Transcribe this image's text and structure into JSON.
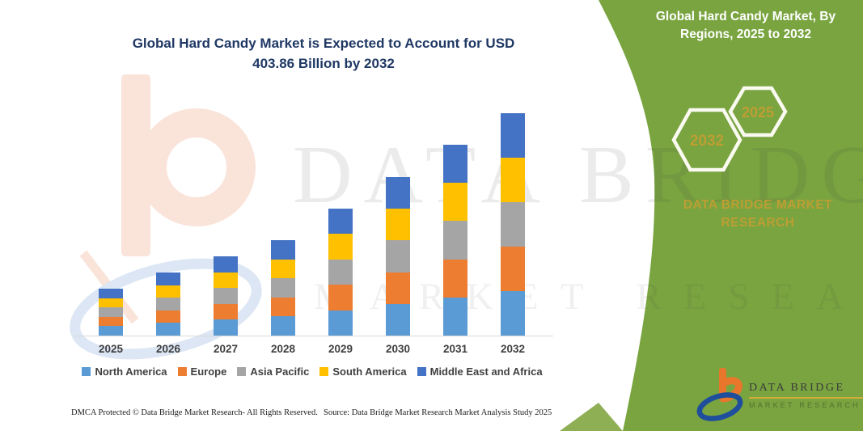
{
  "chart": {
    "title": "Global Hard Candy Market is Expected to Account for USD 403.86 Billion by 2032"
  },
  "chart_data": {
    "type": "bar",
    "stacked": true,
    "unit": "USD Billion",
    "title": "Global Hard Candy Market is Expected to Account for USD 403.86 Billion by 2032",
    "categories": [
      "2025",
      "2026",
      "2027",
      "2028",
      "2029",
      "2030",
      "2031",
      "2032"
    ],
    "series": [
      {
        "name": "North America",
        "color": "#5B9BD5",
        "values": [
          17.0,
          22.9,
          28.8,
          34.7,
          46.1,
          57.6,
          69.3,
          80.8
        ]
      },
      {
        "name": "Europe",
        "color": "#ED7D31",
        "values": [
          17.0,
          22.9,
          28.8,
          34.7,
          46.1,
          57.6,
          69.3,
          80.8
        ]
      },
      {
        "name": "Asia Pacific",
        "color": "#A5A5A5",
        "values": [
          17.0,
          22.9,
          28.8,
          34.7,
          46.1,
          57.6,
          69.3,
          80.8
        ]
      },
      {
        "name": "South America",
        "color": "#FFC000",
        "values": [
          17.0,
          22.9,
          28.8,
          34.7,
          46.1,
          57.6,
          69.3,
          80.8
        ]
      },
      {
        "name": "Middle East and Africa",
        "color": "#4472C4",
        "values": [
          17.0,
          22.9,
          28.8,
          34.7,
          46.1,
          57.6,
          69.3,
          80.8
        ]
      }
    ],
    "totals_estimated": [
      85.2,
      114.6,
      143.9,
      173.3,
      230.6,
      287.8,
      346.6,
      403.86
    ],
    "xlabel": "",
    "ylabel": "",
    "y_axis_visible": false,
    "grid": false,
    "legend_position": "bottom"
  },
  "side_panel": {
    "title": "Global Hard Candy Market, By Regions, 2025 to 2032",
    "hexagons": [
      "2032",
      "2025"
    ],
    "brand_text": "DATA BRIDGE MARKET RESEARCH"
  },
  "watermark": {
    "line1": "DATA BRIDGE",
    "line2": "MARKET RESEARCH"
  },
  "footer": {
    "dmca": "DMCA Protected © Data Bridge Market Research-  All Rights Reserved.",
    "source": "Source: Data Bridge Market Research  Market Analysis Study 2025"
  },
  "logo": {
    "name": "DATA BRIDGE",
    "subtitle": "MARKET RESEARCH"
  },
  "colors": {
    "panel_green": "#79A440",
    "panel_green_light": "#8FAF55",
    "gold": "#BD9E33",
    "title_navy": "#1F3864",
    "axis_label": "#3F3F3F",
    "axis_line": "#D9D9D9"
  }
}
